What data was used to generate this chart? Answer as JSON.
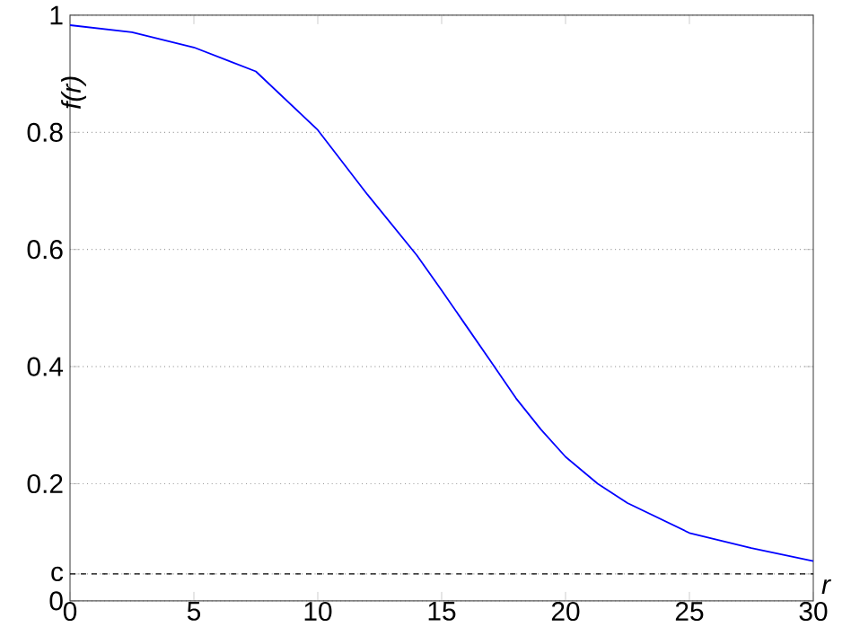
{
  "chart_data": {
    "type": "line",
    "xlabel": "r",
    "ylabel": "f(r)",
    "x": [
      0,
      2.5,
      5,
      7.5,
      10,
      12,
      14,
      15,
      16,
      17,
      18,
      19,
      20,
      21.3,
      22.5,
      25,
      27.5,
      30
    ],
    "series": [
      {
        "color": "#0000ff",
        "values": [
          0.983,
          0.971,
          0.945,
          0.904,
          0.804,
          0.694,
          0.59,
          0.53,
          0.469,
          0.408,
          0.346,
          0.293,
          0.246,
          0.2,
          0.167,
          0.116,
          0.09,
          0.068
        ]
      }
    ],
    "xlim": [
      0,
      30
    ],
    "ylim": [
      0,
      1
    ],
    "xticks": [
      0,
      5,
      10,
      15,
      20,
      25,
      30
    ],
    "yticks": [
      0,
      {
        "value": 0.046,
        "label": "c"
      },
      0.2,
      0.4,
      0.6,
      0.8,
      1
    ],
    "grid": "y",
    "marker": "none",
    "line_style": "solid",
    "ref_lines": [
      {
        "axis": "y",
        "value": 0.046,
        "color": "#000000",
        "line_style": "dashed"
      }
    ]
  }
}
